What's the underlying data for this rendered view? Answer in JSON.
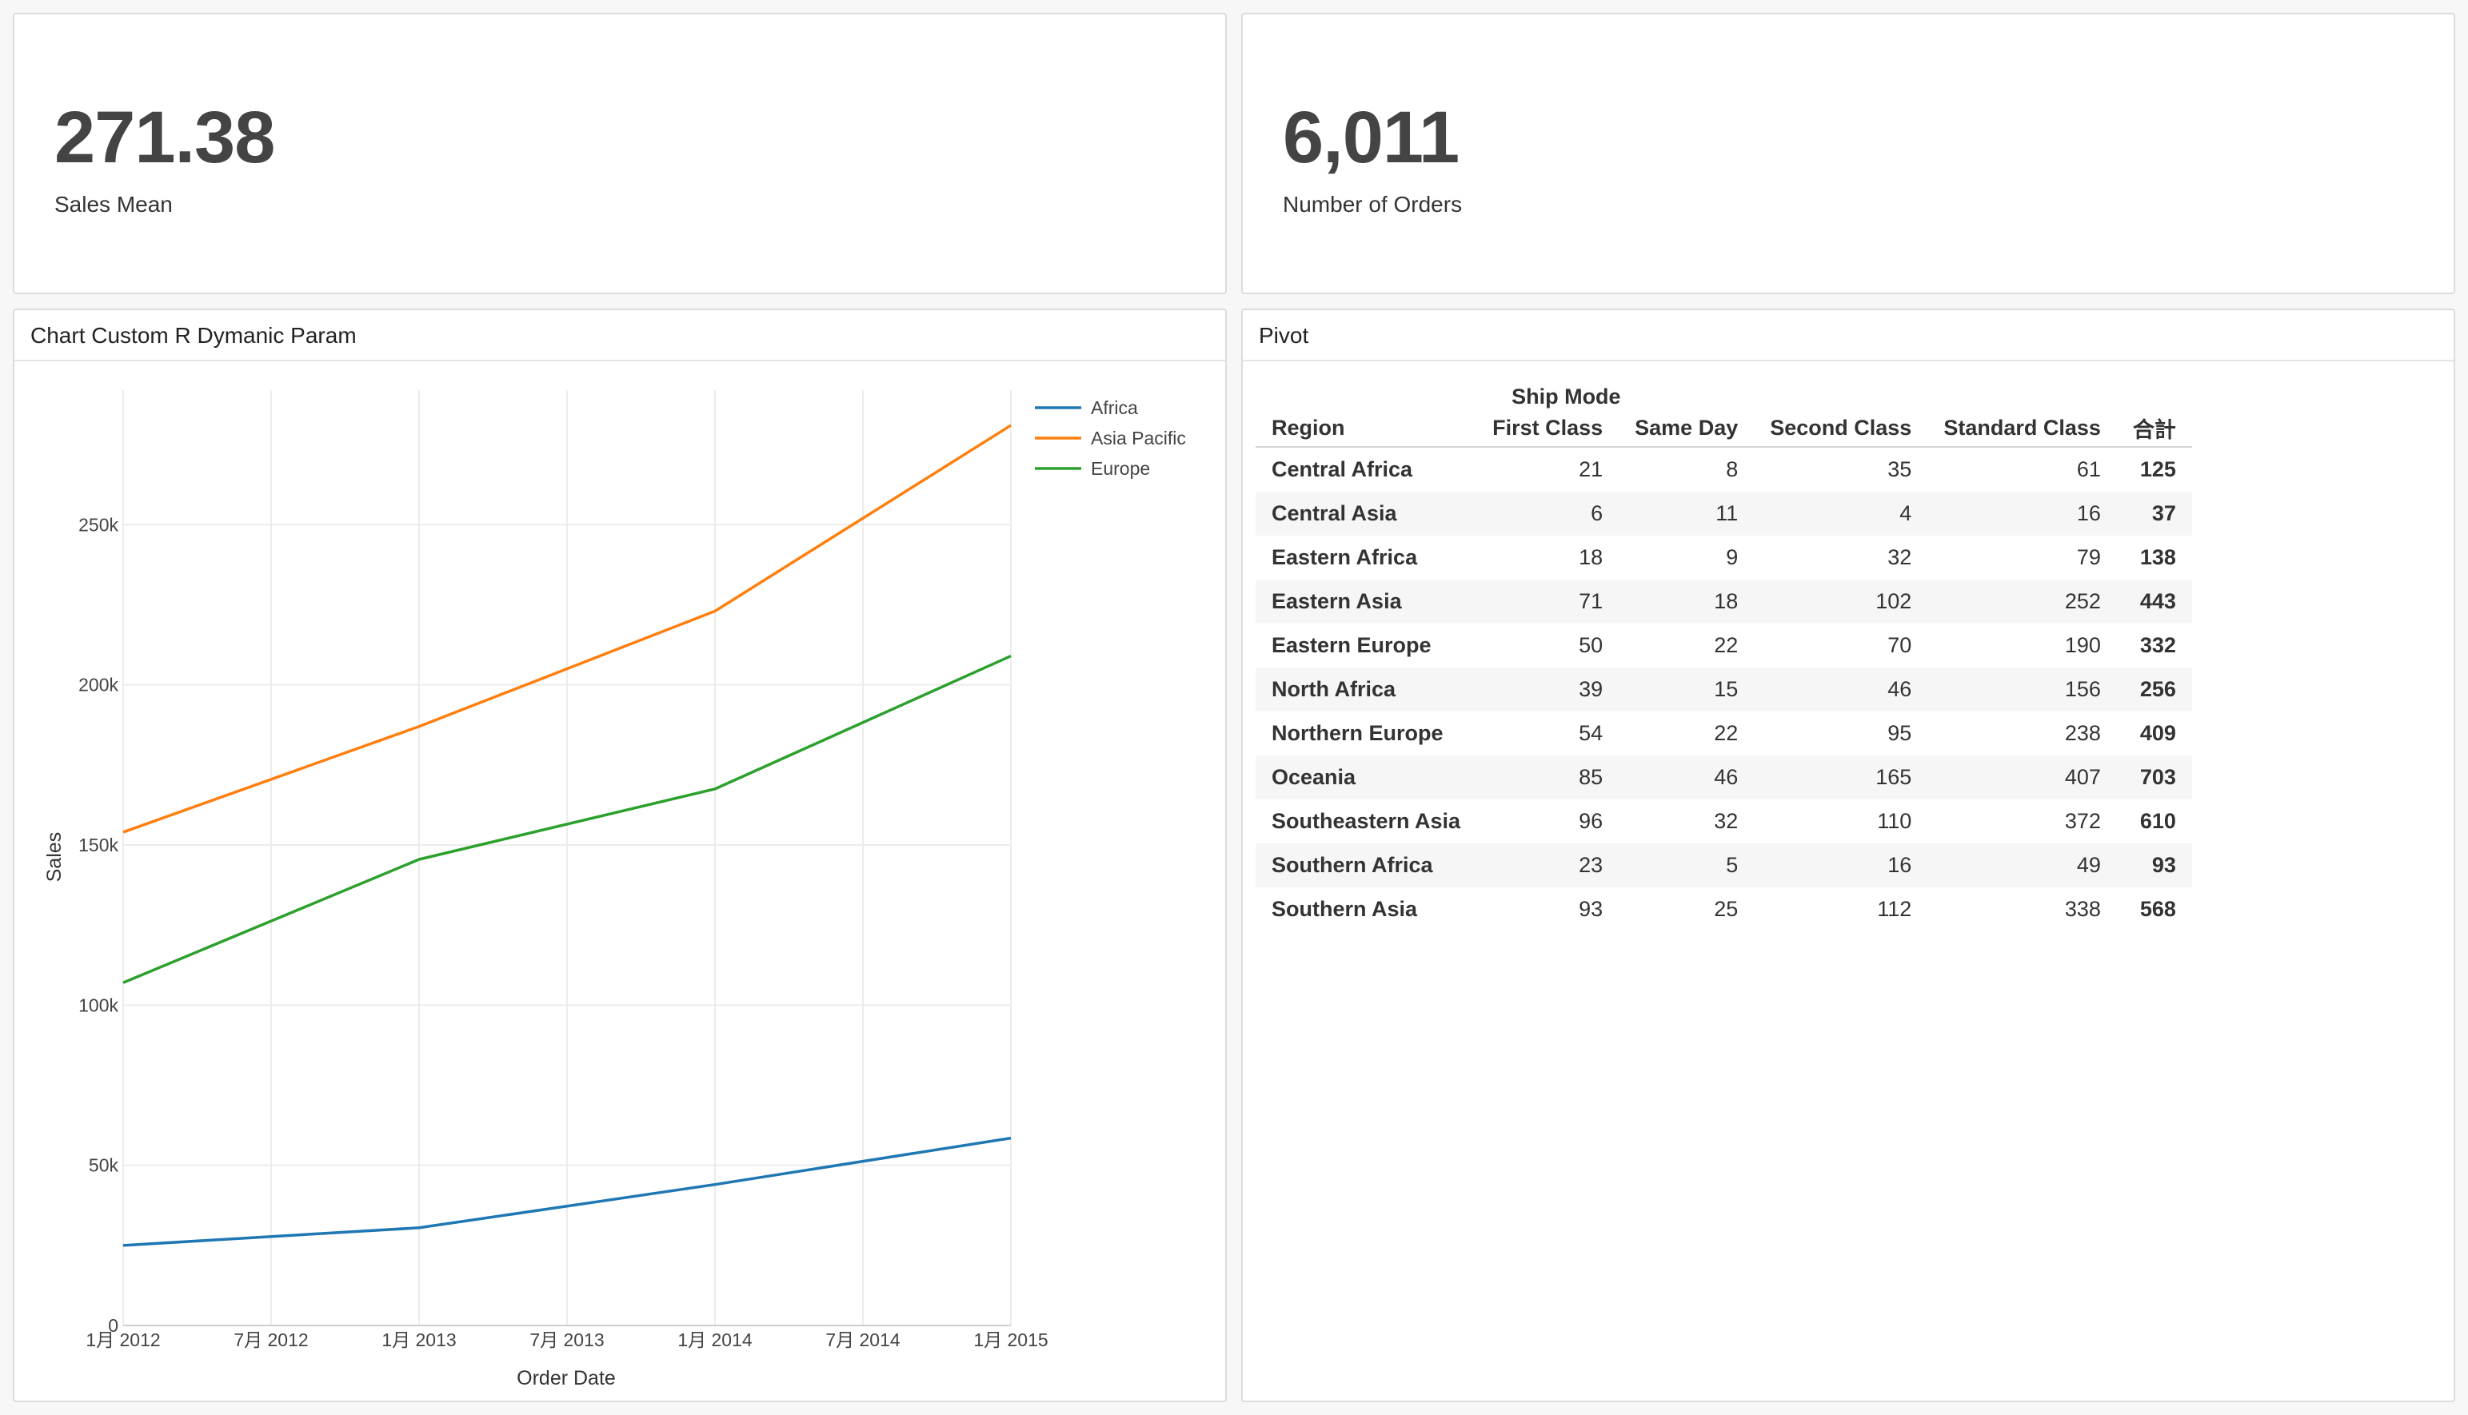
{
  "kpis": [
    {
      "value": "271.38",
      "label": "Sales Mean"
    },
    {
      "value": "6,011",
      "label": "Number of Orders"
    }
  ],
  "chart_panel": {
    "title": "Chart Custom R Dymanic Param"
  },
  "pivot_panel": {
    "title": "Pivot"
  },
  "chart_data": {
    "type": "line",
    "x": [
      "2012-01",
      "2013-01",
      "2014-01",
      "2015-01"
    ],
    "x_tick_labels": [
      "1月 2012",
      "7月 2012",
      "1月 2013",
      "7月 2013",
      "1月 2014",
      "7月 2014",
      "1月 2015"
    ],
    "xlabel": "Order Date",
    "ylabel": "Sales",
    "y_tick_labels": [
      "0",
      "50k",
      "100k",
      "150k",
      "200k",
      "250k"
    ],
    "y_ticks": [
      0,
      50000,
      100000,
      150000,
      200000,
      250000
    ],
    "ylim": [
      0,
      292000
    ],
    "grid": true,
    "legend_position": "top-right",
    "series": [
      {
        "name": "Africa",
        "color": "#1f77b4",
        "values": [
          25000,
          30500,
          44000,
          58500
        ]
      },
      {
        "name": "Asia Pacific",
        "color": "#ff7f0e",
        "values": [
          154000,
          187000,
          223000,
          281000
        ]
      },
      {
        "name": "Europe",
        "color": "#2ca02c",
        "values": [
          107000,
          145500,
          167500,
          209000
        ]
      }
    ]
  },
  "pivot": {
    "group_header": "Ship Mode",
    "row_header": "Region",
    "columns": [
      "First Class",
      "Same Day",
      "Second Class",
      "Standard Class",
      "合計"
    ],
    "rows": [
      {
        "region": "Central Africa",
        "values": [
          "21",
          "8",
          "35",
          "61"
        ],
        "total": "125"
      },
      {
        "region": "Central Asia",
        "values": [
          "6",
          "11",
          "4",
          "16"
        ],
        "total": "37"
      },
      {
        "region": "Eastern Africa",
        "values": [
          "18",
          "9",
          "32",
          "79"
        ],
        "total": "138"
      },
      {
        "region": "Eastern Asia",
        "values": [
          "71",
          "18",
          "102",
          "252"
        ],
        "total": "443"
      },
      {
        "region": "Eastern Europe",
        "values": [
          "50",
          "22",
          "70",
          "190"
        ],
        "total": "332"
      },
      {
        "region": "North Africa",
        "values": [
          "39",
          "15",
          "46",
          "156"
        ],
        "total": "256"
      },
      {
        "region": "Northern Europe",
        "values": [
          "54",
          "22",
          "95",
          "238"
        ],
        "total": "409"
      },
      {
        "region": "Oceania",
        "values": [
          "85",
          "46",
          "165",
          "407"
        ],
        "total": "703"
      },
      {
        "region": "Southeastern Asia",
        "values": [
          "96",
          "32",
          "110",
          "372"
        ],
        "total": "610"
      },
      {
        "region": "Southern Africa",
        "values": [
          "23",
          "5",
          "16",
          "49"
        ],
        "total": "93"
      },
      {
        "region": "Southern Asia",
        "values": [
          "93",
          "25",
          "112",
          "338"
        ],
        "total": "568"
      }
    ]
  }
}
